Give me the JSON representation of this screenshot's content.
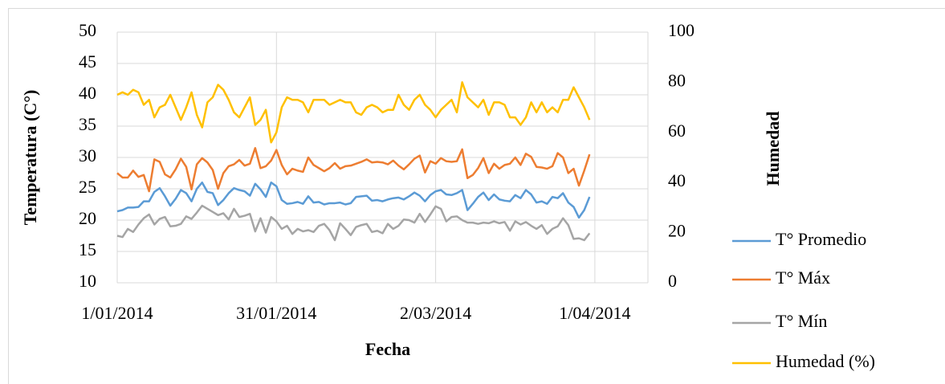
{
  "chart_data": {
    "type": "line",
    "y_label": "Temperatura (C°)",
    "y2_label": "Humedad",
    "x_label": "Fecha",
    "x": [
      "2014-01-01",
      "2014-01-02",
      "2014-01-03",
      "2014-01-04",
      "2014-01-05",
      "2014-01-06",
      "2014-01-07",
      "2014-01-08",
      "2014-01-09",
      "2014-01-10",
      "2014-01-11",
      "2014-01-12",
      "2014-01-13",
      "2014-01-14",
      "2014-01-15",
      "2014-01-16",
      "2014-01-17",
      "2014-01-18",
      "2014-01-19",
      "2014-01-20",
      "2014-01-21",
      "2014-01-22",
      "2014-01-23",
      "2014-01-24",
      "2014-01-25",
      "2014-01-26",
      "2014-01-27",
      "2014-01-28",
      "2014-01-29",
      "2014-01-30",
      "2014-01-31",
      "2014-02-01",
      "2014-02-02",
      "2014-02-03",
      "2014-02-04",
      "2014-02-05",
      "2014-02-06",
      "2014-02-07",
      "2014-02-08",
      "2014-02-09",
      "2014-02-10",
      "2014-02-11",
      "2014-02-12",
      "2014-02-13",
      "2014-02-14",
      "2014-02-15",
      "2014-02-16",
      "2014-02-17",
      "2014-02-18",
      "2014-02-19",
      "2014-02-20",
      "2014-02-21",
      "2014-02-22",
      "2014-02-23",
      "2014-02-24",
      "2014-02-25",
      "2014-02-26",
      "2014-02-27",
      "2014-02-28",
      "2014-03-01",
      "2014-03-02",
      "2014-03-03",
      "2014-03-04",
      "2014-03-05",
      "2014-03-06",
      "2014-03-07",
      "2014-03-08",
      "2014-03-09",
      "2014-03-10",
      "2014-03-11",
      "2014-03-12",
      "2014-03-13",
      "2014-03-14",
      "2014-03-15",
      "2014-03-16",
      "2014-03-17",
      "2014-03-18",
      "2014-03-19",
      "2014-03-20",
      "2014-03-21",
      "2014-03-22",
      "2014-03-23",
      "2014-03-24",
      "2014-03-25",
      "2014-03-26",
      "2014-03-27",
      "2014-03-28",
      "2014-03-29",
      "2014-03-30",
      "2014-03-31"
    ],
    "xlim": [
      "2014-01-01",
      "2014-04-11"
    ],
    "xticks": [
      {
        "value": "2014-01-01",
        "label": "1/01/2014"
      },
      {
        "value": "2014-01-31",
        "label": "31/01/2014"
      },
      {
        "value": "2014-03-02",
        "label": "2/03/2014"
      },
      {
        "value": "2014-04-01",
        "label": "1/04/2014"
      }
    ],
    "ylim": [
      10,
      50
    ],
    "yticks": [
      10,
      15,
      20,
      25,
      30,
      35,
      40,
      45,
      50
    ],
    "y2lim": [
      0,
      100
    ],
    "y2ticks": [
      0,
      20,
      40,
      60,
      80,
      100
    ],
    "grid": true,
    "legend": "right",
    "series": [
      {
        "name": "T° Promedio",
        "color": "#5b9bd5",
        "values": [
          21.4,
          21.6,
          22.0,
          22.0,
          22.1,
          23.0,
          23.0,
          24.5,
          25.1,
          23.8,
          22.3,
          23.4,
          24.8,
          24.3,
          23.0,
          25.0,
          26.0,
          24.5,
          24.3,
          22.4,
          23.2,
          24.3,
          25.1,
          24.8,
          24.6,
          23.9,
          25.8,
          24.9,
          23.7,
          26.0,
          25.4,
          23.2,
          22.6,
          22.7,
          22.9,
          22.6,
          23.8,
          22.8,
          22.9,
          22.5,
          22.7,
          22.7,
          22.8,
          22.5,
          22.7,
          23.7,
          23.8,
          23.9,
          23.1,
          23.2,
          23.0,
          23.3,
          23.5,
          23.6,
          23.3,
          23.8,
          24.4,
          23.9,
          23.0,
          24.0,
          24.6,
          24.8,
          24.1,
          24.0,
          24.3,
          24.8,
          21.6,
          22.6,
          23.7,
          24.4,
          23.2,
          24.1,
          23.3,
          23.1,
          23.0,
          24.0,
          23.5,
          24.8,
          24.1,
          22.8,
          23.0,
          22.6,
          23.7,
          23.5,
          24.3,
          22.8,
          22.1,
          20.4,
          21.6,
          23.7
        ]
      },
      {
        "name": "T° Máx",
        "color": "#ed7d31",
        "values": [
          27.5,
          26.8,
          26.8,
          27.9,
          26.9,
          27.2,
          24.6,
          29.7,
          29.3,
          27.3,
          26.8,
          28.1,
          29.8,
          28.5,
          24.9,
          28.9,
          29.9,
          29.2,
          28.0,
          25.0,
          27.5,
          28.6,
          28.9,
          29.6,
          28.7,
          29.0,
          31.5,
          28.3,
          28.6,
          29.5,
          31.2,
          28.8,
          27.3,
          28.2,
          27.9,
          27.7,
          30.0,
          28.8,
          28.3,
          27.8,
          28.3,
          29.1,
          28.2,
          28.6,
          28.7,
          29.0,
          29.3,
          29.7,
          29.2,
          29.3,
          29.2,
          28.9,
          29.5,
          28.7,
          28.1,
          28.9,
          29.8,
          30.3,
          27.6,
          29.4,
          29.0,
          29.9,
          29.4,
          29.3,
          29.4,
          31.3,
          26.7,
          27.2,
          28.3,
          29.9,
          27.5,
          29.0,
          28.2,
          28.8,
          29.0,
          30.0,
          28.8,
          30.6,
          30.1,
          28.5,
          28.4,
          28.2,
          28.6,
          30.7,
          30.0,
          27.5,
          28.2,
          25.5,
          27.9,
          30.5
        ]
      },
      {
        "name": "T° Mín",
        "color": "#a5a5a5",
        "values": [
          17.5,
          17.3,
          18.6,
          18.1,
          19.3,
          20.3,
          20.9,
          19.3,
          20.2,
          20.5,
          19.0,
          19.1,
          19.4,
          20.6,
          20.2,
          21.2,
          22.3,
          21.8,
          21.3,
          20.8,
          21.1,
          20.1,
          21.8,
          20.5,
          20.7,
          21.0,
          18.2,
          20.3,
          18.0,
          20.5,
          19.8,
          18.6,
          19.1,
          17.8,
          18.6,
          18.2,
          18.4,
          18.1,
          19.1,
          19.4,
          18.4,
          16.8,
          19.5,
          18.6,
          17.6,
          18.9,
          19.2,
          19.4,
          18.1,
          18.3,
          17.9,
          19.4,
          18.6,
          19.1,
          20.1,
          20.0,
          19.6,
          21.0,
          19.7,
          20.9,
          22.2,
          21.8,
          19.8,
          20.5,
          20.6,
          20.0,
          19.6,
          19.6,
          19.4,
          19.6,
          19.5,
          19.8,
          19.5,
          19.7,
          18.3,
          19.8,
          19.3,
          19.7,
          19.1,
          18.6,
          19.2,
          17.8,
          18.6,
          19.0,
          20.3,
          19.2,
          17.0,
          17.1,
          16.8,
          17.9
        ]
      },
      {
        "name": "Humedad (%)",
        "color": "#ffc000",
        "axis": "y2",
        "values": [
          75,
          76,
          75,
          77,
          76,
          71,
          73,
          66,
          70,
          71,
          75,
          70,
          65,
          70,
          76,
          67,
          62,
          72,
          74,
          79,
          77,
          73,
          68,
          66,
          70,
          74,
          63,
          65,
          69,
          56,
          60,
          70,
          74,
          73,
          73,
          72,
          68,
          73,
          73,
          73,
          71,
          72,
          73,
          72,
          72,
          68,
          67,
          70,
          71,
          70,
          68,
          69,
          69,
          75,
          71,
          69,
          73,
          75,
          71,
          69,
          66,
          69,
          71,
          73,
          68,
          80,
          74,
          72,
          70,
          73,
          67,
          72,
          72,
          71,
          66,
          66,
          63,
          66,
          72,
          68,
          72,
          68,
          70,
          68,
          73,
          73,
          78,
          74,
          70,
          65
        ]
      }
    ]
  }
}
